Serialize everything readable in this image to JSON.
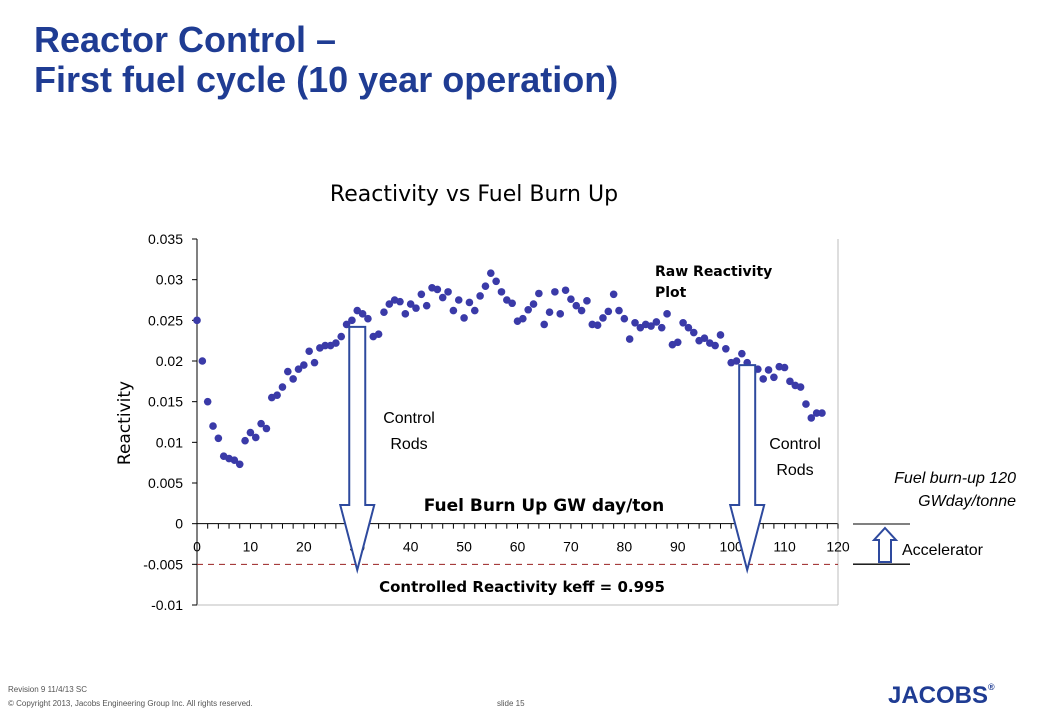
{
  "slide": {
    "title_line1": "Reactor Control –",
    "title_line2": "First fuel cycle (10 year operation)",
    "footer_revision": "Revision 9 11/4/13 SC",
    "footer_copyright": "© Copyright 2013, Jacobs Engineering Group Inc. All rights reserved.",
    "footer_slide": "slide 15",
    "logo_text": "JACOBS",
    "logo_mark": "®"
  },
  "colors": {
    "title": "#1f3c93",
    "points": "#3a3aa8",
    "arrow_stroke": "#2e4a9e",
    "dashed_line": "#9a2020"
  },
  "chart_data": {
    "type": "scatter",
    "title": "Reactivity vs Fuel Burn Up",
    "xlabel": "Fuel Burn Up GW day/ton",
    "ylabel": "Reactivity",
    "xlim": [
      0,
      120
    ],
    "ylim": [
      -0.01,
      0.035
    ],
    "x_ticks": [
      "0",
      "10",
      "20",
      "30",
      "40",
      "50",
      "60",
      "70",
      "80",
      "90",
      "100",
      "110",
      "120"
    ],
    "y_ticks": [
      "0.035",
      "0.03",
      "0.025",
      "0.02",
      "0.015",
      "0.01",
      "0.005",
      "0",
      "-0.005",
      "-0.01"
    ],
    "grid": false,
    "series": [
      {
        "points": [
          [
            0,
            0.025
          ],
          [
            1,
            0.02
          ],
          [
            2,
            0.015
          ],
          [
            3,
            0.012
          ],
          [
            4,
            0.0105
          ],
          [
            5,
            0.0083
          ],
          [
            6,
            0.008
          ],
          [
            7,
            0.0078
          ],
          [
            8,
            0.0073
          ],
          [
            9,
            0.0102
          ],
          [
            10,
            0.0112
          ],
          [
            11,
            0.0106
          ],
          [
            12,
            0.0123
          ],
          [
            13,
            0.0117
          ],
          [
            14,
            0.0155
          ],
          [
            15,
            0.0158
          ],
          [
            16,
            0.0168
          ],
          [
            17,
            0.0187
          ],
          [
            18,
            0.0178
          ],
          [
            19,
            0.019
          ],
          [
            20,
            0.0195
          ],
          [
            21,
            0.0212
          ],
          [
            22,
            0.0198
          ],
          [
            23,
            0.0216
          ],
          [
            24,
            0.0219
          ],
          [
            25,
            0.0219
          ],
          [
            26,
            0.0222
          ],
          [
            27,
            0.023
          ],
          [
            28,
            0.0245
          ],
          [
            29,
            0.025
          ],
          [
            30,
            0.0262
          ],
          [
            31,
            0.0258
          ],
          [
            32,
            0.0252
          ],
          [
            33,
            0.023
          ],
          [
            34,
            0.0233
          ],
          [
            35,
            0.026
          ],
          [
            36,
            0.027
          ],
          [
            37,
            0.0275
          ],
          [
            38,
            0.0273
          ],
          [
            39,
            0.0258
          ],
          [
            40,
            0.027
          ],
          [
            41,
            0.0265
          ],
          [
            42,
            0.0282
          ],
          [
            43,
            0.0268
          ],
          [
            44,
            0.029
          ],
          [
            45,
            0.0288
          ],
          [
            46,
            0.0278
          ],
          [
            47,
            0.0285
          ],
          [
            48,
            0.0262
          ],
          [
            49,
            0.0275
          ],
          [
            50,
            0.0253
          ],
          [
            51,
            0.0272
          ],
          [
            52,
            0.0262
          ],
          [
            53,
            0.028
          ],
          [
            54,
            0.0292
          ],
          [
            55,
            0.0308
          ],
          [
            56,
            0.0298
          ],
          [
            57,
            0.0285
          ],
          [
            58,
            0.0275
          ],
          [
            59,
            0.0271
          ],
          [
            60,
            0.0249
          ],
          [
            61,
            0.0252
          ],
          [
            62,
            0.0263
          ],
          [
            63,
            0.027
          ],
          [
            64,
            0.0283
          ],
          [
            65,
            0.0245
          ],
          [
            66,
            0.026
          ],
          [
            67,
            0.0285
          ],
          [
            68,
            0.0258
          ],
          [
            69,
            0.0287
          ],
          [
            70,
            0.0276
          ],
          [
            71,
            0.0268
          ],
          [
            72,
            0.0262
          ],
          [
            73,
            0.0274
          ],
          [
            74,
            0.0245
          ],
          [
            75,
            0.0244
          ],
          [
            76,
            0.0253
          ],
          [
            77,
            0.0261
          ],
          [
            78,
            0.0282
          ],
          [
            79,
            0.0262
          ],
          [
            80,
            0.0252
          ],
          [
            81,
            0.0227
          ],
          [
            82,
            0.0247
          ],
          [
            83,
            0.0241
          ],
          [
            84,
            0.0245
          ],
          [
            85,
            0.0243
          ],
          [
            86,
            0.0248
          ],
          [
            87,
            0.0241
          ],
          [
            88,
            0.0258
          ],
          [
            89,
            0.022
          ],
          [
            90,
            0.0223
          ],
          [
            91,
            0.0247
          ],
          [
            92,
            0.0241
          ],
          [
            93,
            0.0235
          ],
          [
            94,
            0.0225
          ],
          [
            95,
            0.0228
          ],
          [
            96,
            0.0222
          ],
          [
            97,
            0.0219
          ],
          [
            98,
            0.0232
          ],
          [
            99,
            0.0215
          ],
          [
            100,
            0.0198
          ],
          [
            101,
            0.02
          ],
          [
            102,
            0.0209
          ],
          [
            103,
            0.0198
          ],
          [
            104,
            0.0185
          ],
          [
            105,
            0.019
          ],
          [
            106,
            0.0178
          ],
          [
            107,
            0.0189
          ],
          [
            108,
            0.018
          ],
          [
            109,
            0.0193
          ],
          [
            110,
            0.0192
          ],
          [
            111,
            0.0175
          ],
          [
            112,
            0.017
          ],
          [
            113,
            0.0168
          ],
          [
            114,
            0.0147
          ],
          [
            115,
            0.013
          ],
          [
            116,
            0.0136
          ],
          [
            117,
            0.0136
          ]
        ]
      }
    ],
    "annotations": {
      "raw_label_line1": "Raw Reactivity",
      "raw_label_line2": "Plot",
      "control_rods_1_line1": "Control",
      "control_rods_1_line2": "Rods",
      "control_rods_2_line1": "Control",
      "control_rods_2_line2": "Rods",
      "fuel_burnup_line1": "Fuel burn-up 120",
      "fuel_burnup_line2": "GWday/tonne",
      "accelerator": "Accelerator",
      "controlled_reactivity": "Controlled Reactivity keff = 0.995",
      "controlled_reactivity_value": -0.005,
      "rod_arrow_1_x": 30,
      "rod_arrow_2_x": 103
    },
    "legend": "none"
  }
}
